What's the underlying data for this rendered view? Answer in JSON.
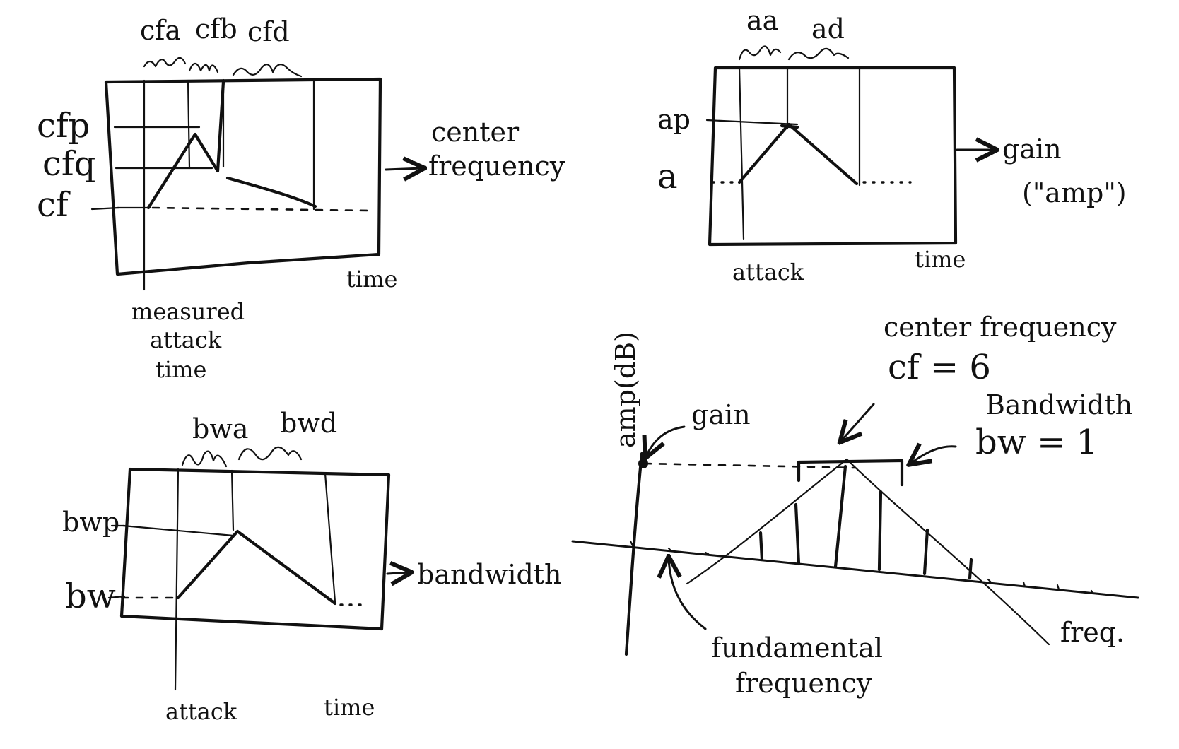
{
  "panels": {
    "center_frequency": {
      "top_labels": [
        "cfa",
        "cfb",
        "cfd"
      ],
      "left_labels": [
        "cfp",
        "cfq",
        "cf"
      ],
      "output_label_line1": "center",
      "output_label_line2": "frequency",
      "time_label": "time",
      "bottom_label_line1": "measured",
      "bottom_label_line2": "attack",
      "bottom_label_line3": "time"
    },
    "gain": {
      "top_labels": [
        "aa",
        "ad"
      ],
      "left_labels": [
        "ap",
        "a"
      ],
      "output_label_line1": "gain",
      "output_label_line2": "(\"amp\")",
      "attack_label": "attack",
      "time_label": "time"
    },
    "bandwidth": {
      "top_labels": [
        "bwa",
        "bwd"
      ],
      "left_labels": [
        "bwp",
        "bw"
      ],
      "output_label": "bandwidth",
      "attack_label": "attack",
      "time_label": "time"
    },
    "spectrum": {
      "y_axis_label": "amp(dB)",
      "gain_label": "gain",
      "cf_label_line1": "center frequency",
      "cf_label_line2": "cf = 6",
      "bw_label_line1": "Bandwidth",
      "bw_label_line2": "bw = 1",
      "x_axis_label": "freq.",
      "fund_label_line1": "fundamental",
      "fund_label_line2": "frequency"
    }
  }
}
